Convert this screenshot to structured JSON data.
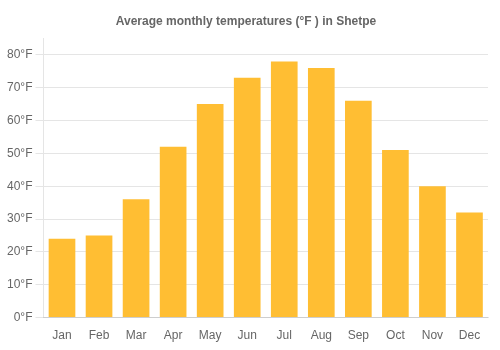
{
  "chart_data": {
    "type": "bar",
    "title": "Average monthly temperatures (°F ) in Shetpe",
    "categories": [
      "Jan",
      "Feb",
      "Mar",
      "Apr",
      "May",
      "Jun",
      "Jul",
      "Aug",
      "Sep",
      "Oct",
      "Nov",
      "Dec"
    ],
    "values": [
      24,
      25,
      36,
      52,
      65,
      73,
      78,
      76,
      66,
      51,
      40,
      32
    ],
    "color": "#FFBE33",
    "ylim": [
      0,
      85
    ],
    "yticks": [
      {
        "value": 0,
        "label": "0°F"
      },
      {
        "value": 10,
        "label": "10°F"
      },
      {
        "value": 20,
        "label": "20°F"
      },
      {
        "value": 30,
        "label": "30°F"
      },
      {
        "value": 40,
        "label": "40°F"
      },
      {
        "value": 50,
        "label": "50°F"
      },
      {
        "value": 60,
        "label": "60°F"
      },
      {
        "value": 70,
        "label": "70°F"
      },
      {
        "value": 80,
        "label": "80°F"
      }
    ],
    "grid": true
  }
}
